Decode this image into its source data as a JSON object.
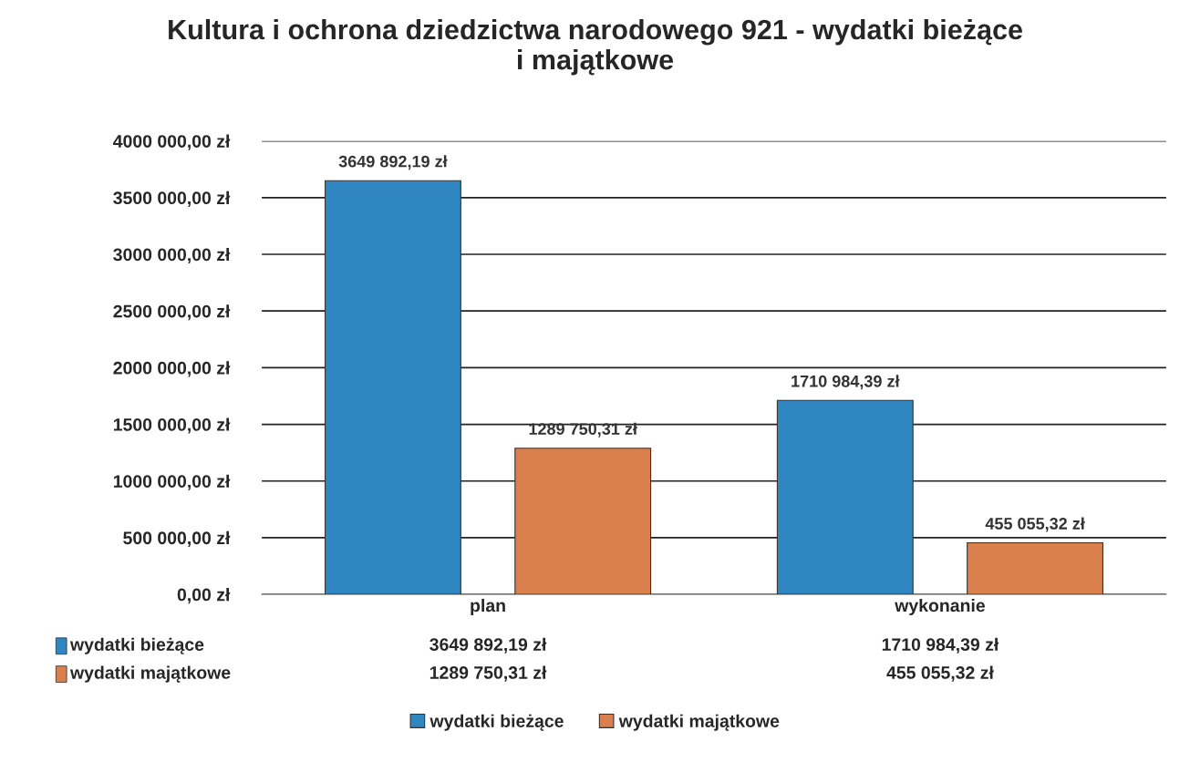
{
  "chart_data": {
    "type": "bar",
    "title": "Kultura i ochrona dziedzictwa narodowego 921 - wydatki bieżące\ni majątkowe",
    "categories": [
      "plan",
      "wykonanie"
    ],
    "series": [
      {
        "name": "wydatki bieżące",
        "color": "#2f86c0",
        "values": [
          3649892.19,
          1710984.39
        ],
        "value_labels": [
          "3649 892,19 zł",
          "1710 984,39 zł"
        ]
      },
      {
        "name": "wydatki majątkowe",
        "color": "#d9804e",
        "values": [
          1289750.31,
          455055.32
        ],
        "value_labels": [
          "1289 750,31 zł",
          "455 055,32 zł"
        ]
      }
    ],
    "ylim": [
      0,
      4000000
    ],
    "yticks": [
      {
        "value": 0,
        "label": "0,00 zł"
      },
      {
        "value": 500000,
        "label": "500 000,00 zł"
      },
      {
        "value": 1000000,
        "label": "1000 000,00 zł"
      },
      {
        "value": 1500000,
        "label": "1500 000,00 zł"
      },
      {
        "value": 2000000,
        "label": "2000 000,00 zł"
      },
      {
        "value": 2500000,
        "label": "2500 000,00 zł"
      },
      {
        "value": 3000000,
        "label": "3000 000,00 zł"
      },
      {
        "value": 3500000,
        "label": "3500 000,00 zł"
      },
      {
        "value": 4000000,
        "label": "4000 000,00 zł"
      }
    ],
    "grid": "y",
    "legend": "bottom"
  }
}
